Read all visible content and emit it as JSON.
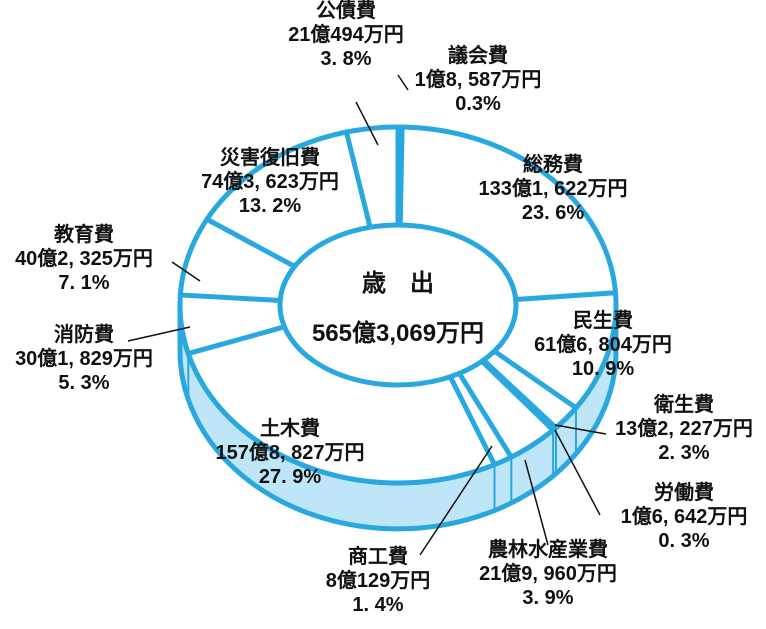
{
  "colors": {
    "line": "#29a8e0",
    "side_fill": "#bfe6f8",
    "side_light": "#dff3fc",
    "text": "#111111",
    "background": "#ffffff"
  },
  "chart_data": {
    "type": "pie",
    "center_title": "歳　出",
    "total_label": "565億3,069万円",
    "slices": [
      {
        "name": "議会費",
        "amount": "1億8, 587万円",
        "percent": "0.3%",
        "value": 0.3
      },
      {
        "name": "総務費",
        "amount": "133億1, 622万円",
        "percent": "23. 6%",
        "value": 23.6
      },
      {
        "name": "民生費",
        "amount": "61億6, 804万円",
        "percent": "10. 9%",
        "value": 10.9
      },
      {
        "name": "衛生費",
        "amount": "13億2, 227万円",
        "percent": "2. 3%",
        "value": 2.3
      },
      {
        "name": "労働費",
        "amount": "1億6, 642万円",
        "percent": "0. 3%",
        "value": 0.3
      },
      {
        "name": "農林水産業費",
        "amount": "21億9, 960万円",
        "percent": "3. 9%",
        "value": 3.9
      },
      {
        "name": "商工費",
        "amount": "8億129万円",
        "percent": "1. 4%",
        "value": 1.4
      },
      {
        "name": "土木費",
        "amount": "157億8, 827万円",
        "percent": "27. 9%",
        "value": 27.9
      },
      {
        "name": "消防費",
        "amount": "30億1, 829万円",
        "percent": "5. 3%",
        "value": 5.3
      },
      {
        "name": "教育費",
        "amount": "40億2, 325万円",
        "percent": "7. 1%",
        "value": 7.1
      },
      {
        "name": "災害復旧費",
        "amount": "74億3, 623万円",
        "percent": "13. 2%",
        "value": 13.2
      },
      {
        "name": "公債費",
        "amount": "21億494万円",
        "percent": "3. 8%",
        "value": 3.8
      }
    ]
  }
}
